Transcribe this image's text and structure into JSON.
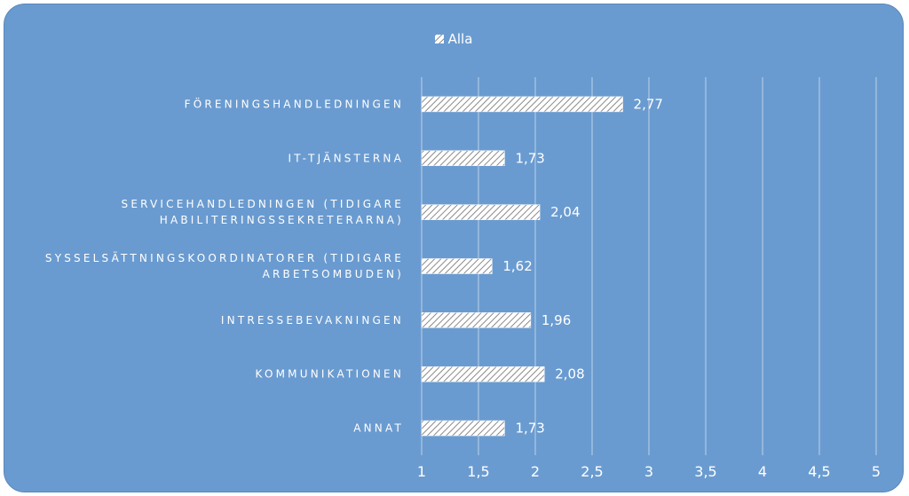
{
  "chart_data": {
    "type": "bar",
    "orientation": "horizontal",
    "legend": {
      "position": "top",
      "entries": [
        "Alla"
      ]
    },
    "series": [
      {
        "name": "Alla",
        "values": [
          2.77,
          1.73,
          2.04,
          1.62,
          1.96,
          2.08,
          1.73
        ],
        "value_labels": [
          "2,77",
          "1,73",
          "2,04",
          "1,62",
          "1,96",
          "2,08",
          "1,73"
        ]
      }
    ],
    "categories": [
      [
        "FÖRENINGSHANDLEDNINGEN"
      ],
      [
        "IT-TJÄNSTERNA"
      ],
      [
        "SERVICEHANDLEDNINGEN (TIDIGARE",
        "HABILITERINGSSEKRETERARNA)"
      ],
      [
        "SYSSELSÄTTNINGSKOORDINATORER (TIDIGARE",
        "ARBETSOMBUDEN)"
      ],
      [
        "INTRESSEBEVAKNINGEN"
      ],
      [
        "KOMMUNIKATIONEN"
      ],
      [
        "ANNAT"
      ]
    ],
    "xlim": [
      1,
      5
    ],
    "xticks": [
      1,
      1.5,
      2,
      2.5,
      3,
      3.5,
      4,
      4.5,
      5
    ],
    "xtick_labels": [
      "1",
      "1,5",
      "2",
      "2,5",
      "3",
      "3,5",
      "4",
      "4,5",
      "5"
    ],
    "grid": "vertical",
    "colors": {
      "background": "#6a9bd0",
      "bar_fill": "#ffffff",
      "bar_hatch": "#8a8a8a",
      "gridline": "#ffffff",
      "text": "#ffffff"
    }
  }
}
